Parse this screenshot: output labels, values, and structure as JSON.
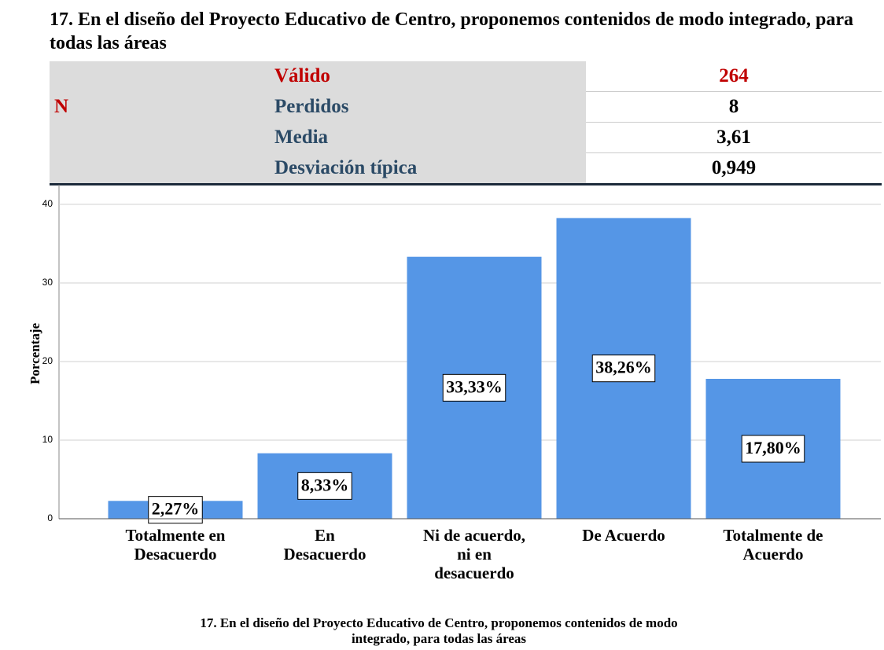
{
  "title": "17. En el diseño del Proyecto Educativo de Centro, proponemos contenidos de modo integrado, para todas las áreas",
  "table": {
    "rows": [
      [
        "N",
        "Válido",
        "264"
      ],
      [
        "Perdidos",
        "8"
      ],
      [
        "Media",
        "3,61"
      ],
      [
        "Desviación típica",
        "0,949"
      ]
    ]
  },
  "chart_data": {
    "type": "bar",
    "categories": [
      [
        "Totalmente en",
        "Desacuerdo"
      ],
      [
        "En",
        "Desacuerdo"
      ],
      [
        "Ni de acuerdo,",
        "ni en",
        "desacuerdo"
      ],
      [
        "De Acuerdo"
      ],
      [
        "Totalmente de",
        "Acuerdo"
      ]
    ],
    "values": [
      2.27,
      8.33,
      33.33,
      38.26,
      17.8
    ],
    "value_labels": [
      "2,27%",
      "8,33%",
      "33,33%",
      "38,26%",
      "17,80%"
    ],
    "color": "#5596e6",
    "ylabel": "Porcentaje",
    "xlabel": [
      "17. En el diseño del Proyecto Educativo de Centro, proponemos contenidos de modo",
      "integrado, para todas las áreas"
    ],
    "ylim": [
      0,
      42.5
    ],
    "yticks": [
      0,
      10,
      20,
      30,
      40
    ],
    "grid": true
  }
}
